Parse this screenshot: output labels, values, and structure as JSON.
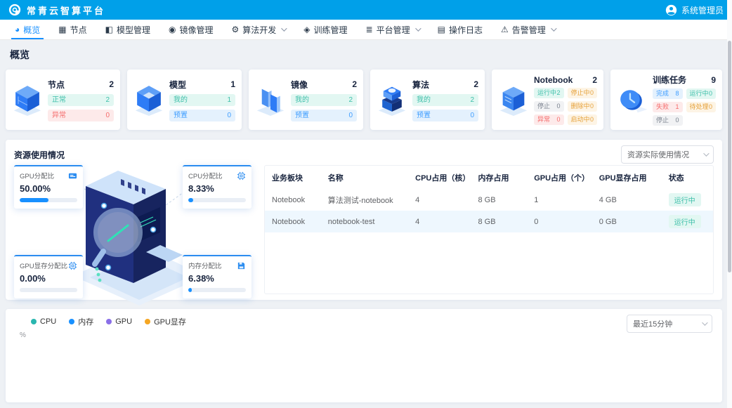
{
  "colors": {
    "header_bg": "#00a0e9",
    "primary": "#1890ff",
    "teal": "#3dbfa9",
    "red": "#f56c6c",
    "orange": "#e6a23c",
    "gray": "#7a828e",
    "progress_fill": "#1890ff"
  },
  "header": {
    "app_title": "常青云智算平台",
    "user_name": "系统管理员"
  },
  "nav": {
    "items": [
      {
        "label": "概览",
        "icon": "overview-icon",
        "glyph": "◕",
        "active": true,
        "dropdown": false
      },
      {
        "label": "节点",
        "icon": "node-icon",
        "glyph": "▦",
        "active": false,
        "dropdown": false
      },
      {
        "label": "模型管理",
        "icon": "model-icon",
        "glyph": "◧",
        "active": false,
        "dropdown": false
      },
      {
        "label": "镜像管理",
        "icon": "image-icon",
        "glyph": "◉",
        "active": false,
        "dropdown": false
      },
      {
        "label": "算法开发",
        "icon": "algorithm-icon",
        "glyph": "⚙",
        "active": false,
        "dropdown": true
      },
      {
        "label": "训练管理",
        "icon": "training-icon",
        "glyph": "◈",
        "active": false,
        "dropdown": false
      },
      {
        "label": "平台管理",
        "icon": "platform-icon",
        "glyph": "≣",
        "active": false,
        "dropdown": true
      },
      {
        "label": "操作日志",
        "icon": "logs-icon",
        "glyph": "▤",
        "active": false,
        "dropdown": false
      },
      {
        "label": "告警管理",
        "icon": "alarm-icon",
        "glyph": "⚠",
        "active": false,
        "dropdown": true
      }
    ]
  },
  "page": {
    "title": "概览"
  },
  "stat_cards": [
    {
      "title": "节点",
      "total": "2",
      "columns": [
        [
          {
            "label": "正常",
            "value": "2",
            "style": "teal"
          },
          {
            "label": "异常",
            "value": "0",
            "style": "red"
          }
        ]
      ]
    },
    {
      "title": "模型",
      "total": "1",
      "columns": [
        [
          {
            "label": "我的",
            "value": "1",
            "style": "teal"
          },
          {
            "label": "预置",
            "value": "0",
            "style": "blue"
          }
        ]
      ]
    },
    {
      "title": "镜像",
      "total": "2",
      "columns": [
        [
          {
            "label": "我的",
            "value": "2",
            "style": "teal"
          },
          {
            "label": "预置",
            "value": "0",
            "style": "blue"
          }
        ]
      ]
    },
    {
      "title": "算法",
      "total": "2",
      "columns": [
        [
          {
            "label": "我的",
            "value": "2",
            "style": "teal"
          },
          {
            "label": "预置",
            "value": "0",
            "style": "blue"
          }
        ]
      ]
    },
    {
      "title": "Notebook",
      "total": "2",
      "columns": [
        [
          {
            "label": "运行中",
            "value": "2",
            "style": "teal"
          },
          {
            "label": "停止",
            "value": "0",
            "style": "gray"
          },
          {
            "label": "异常",
            "value": "0",
            "style": "red"
          }
        ],
        [
          {
            "label": "停止中",
            "value": "0",
            "style": "orange"
          },
          {
            "label": "删除中",
            "value": "0",
            "style": "orange"
          },
          {
            "label": "启动中",
            "value": "0",
            "style": "orange"
          }
        ]
      ]
    },
    {
      "title": "训练任务",
      "total": "9",
      "columns": [
        [
          {
            "label": "完成",
            "value": "8",
            "style": "blue"
          },
          {
            "label": "失败",
            "value": "1",
            "style": "red"
          },
          {
            "label": "停止",
            "value": "0",
            "style": "gray"
          }
        ],
        [
          {
            "label": "运行中",
            "value": "0",
            "style": "teal"
          },
          {
            "label": "待处理",
            "value": "0",
            "style": "orange"
          }
        ]
      ]
    }
  ],
  "resource_section": {
    "title": "资源使用情况",
    "dropdown_value": "资源实际使用情况",
    "metrics": [
      {
        "label": "GPU分配比",
        "value": "50.00%",
        "percent": 50,
        "icon": "gpu-icon"
      },
      {
        "label": "CPU分配比",
        "value": "8.33%",
        "percent": 8.33,
        "icon": "cpu-icon"
      },
      {
        "label": "GPU显存分配比",
        "value": "0.00%",
        "percent": 0,
        "icon": "vram-chip-icon"
      },
      {
        "label": "内存分配比",
        "value": "6.38%",
        "percent": 6.38,
        "icon": "memory-icon"
      }
    ],
    "table": {
      "headers": [
        "业务板块",
        "名称",
        "CPU占用（核）",
        "内存占用",
        "GPU占用（个）",
        "GPU显存占用",
        "状态"
      ],
      "rows": [
        {
          "cells": [
            "Notebook",
            "算法测试-notebook",
            "4",
            "8 GB",
            "1",
            "4 GB"
          ],
          "status": "运行中"
        },
        {
          "cells": [
            "Notebook",
            "notebook-test",
            "4",
            "8 GB",
            "0",
            "0 GB"
          ],
          "status": "运行中"
        }
      ]
    }
  },
  "chart_panel": {
    "legend": [
      {
        "label": "CPU",
        "color": "#29b6af"
      },
      {
        "label": "内存",
        "color": "#1890ff"
      },
      {
        "label": "GPU",
        "color": "#8a6fe8"
      },
      {
        "label": "GPU显存",
        "color": "#f5a623"
      }
    ],
    "y_axis_label": "%",
    "dropdown_value": "最近15分钟"
  },
  "chart_data": {
    "type": "line",
    "title": "",
    "ylabel": "%",
    "x": [],
    "series": [
      {
        "name": "CPU",
        "values": []
      },
      {
        "name": "内存",
        "values": []
      },
      {
        "name": "GPU",
        "values": []
      },
      {
        "name": "GPU显存",
        "values": []
      }
    ],
    "legend_position": "top-left",
    "note": "chart plot area is empty in the screenshot"
  }
}
